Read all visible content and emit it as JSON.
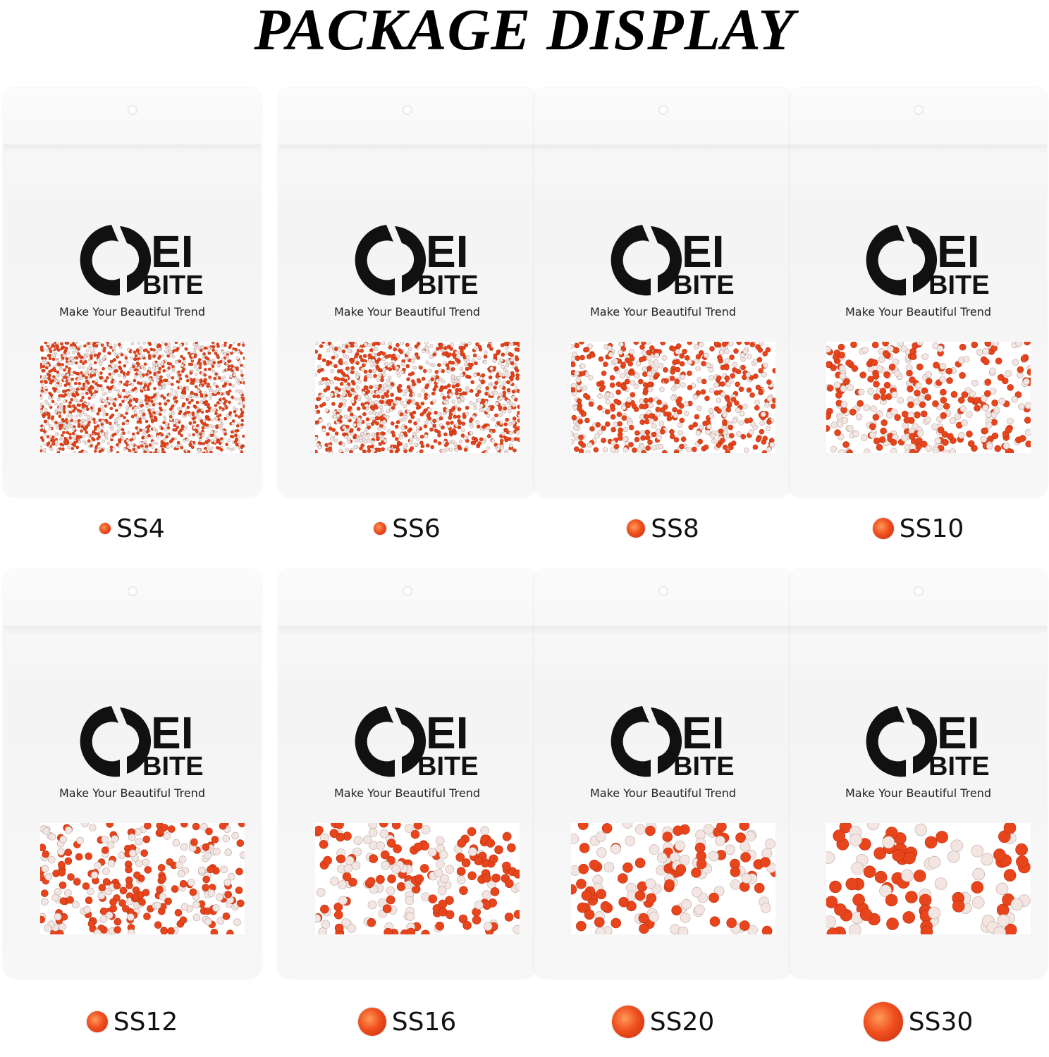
{
  "title": "PACKAGE DISPLAY",
  "brand": {
    "logo_text": "OEI BITE",
    "tagline": "Make Your Beautiful Trend"
  },
  "stone_color": "#e8451c",
  "packages": [
    {
      "size": "SS4"
    },
    {
      "size": "SS6"
    },
    {
      "size": "SS8"
    },
    {
      "size": "SS10"
    },
    {
      "size": "SS12"
    },
    {
      "size": "SS16"
    },
    {
      "size": "SS20"
    },
    {
      "size": "SS30"
    }
  ]
}
